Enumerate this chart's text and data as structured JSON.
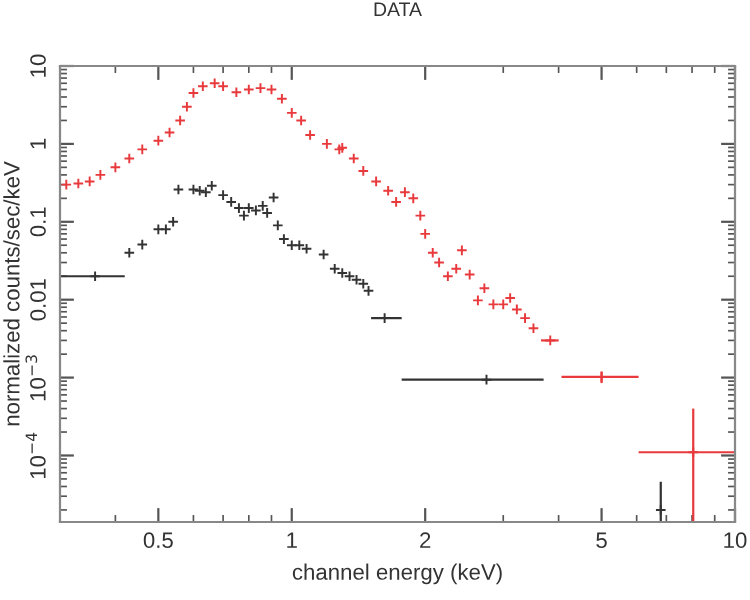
{
  "chart_data": {
    "type": "scatter",
    "title": "DATA",
    "xlabel": "channel energy (keV)",
    "ylabel": "normalized counts/sec/keV",
    "log": "xy",
    "xlim": [
      0.3,
      10
    ],
    "ylim": [
      1.4e-05,
      10
    ],
    "xticks": [
      0.5,
      1,
      2,
      5,
      10
    ],
    "yticks": [
      {
        "value": 0.0001,
        "label": "10$^{−4}$"
      },
      {
        "value": 0.001,
        "label": "10$^{−3}$"
      },
      0.01,
      0.1,
      1,
      10
    ],
    "grid": false,
    "marker": "cross",
    "series": [
      {
        "color": "#e8393c",
        "x": [
          0.31,
          0.33,
          0.35,
          0.37,
          0.4,
          0.43,
          0.46,
          0.5,
          0.53,
          0.56,
          0.58,
          0.6,
          0.63,
          0.67,
          0.7,
          0.75,
          0.8,
          0.85,
          0.9,
          0.95,
          1.0,
          1.05,
          1.1,
          1.2,
          1.28,
          1.3,
          1.38,
          1.45,
          1.55,
          1.65,
          1.72,
          1.8,
          1.88,
          1.95,
          2.0,
          2.08,
          2.15,
          2.25,
          2.35,
          2.42,
          2.52,
          2.63,
          2.72,
          2.85,
          3.0,
          3.11,
          3.22,
          3.36,
          3.51,
          3.83,
          5.0,
          8.05
        ],
        "values": [
          0.3,
          0.31,
          0.33,
          0.4,
          0.5,
          0.65,
          0.85,
          1.1,
          1.4,
          2.0,
          3.0,
          4.5,
          5.5,
          6.0,
          5.5,
          4.6,
          5.0,
          5.2,
          5.0,
          3.8,
          2.5,
          2.0,
          1.3,
          1.0,
          0.85,
          0.89,
          0.65,
          0.45,
          0.33,
          0.25,
          0.18,
          0.24,
          0.2,
          0.12,
          0.07,
          0.04,
          0.03,
          0.02,
          0.025,
          0.043,
          0.021,
          0.0098,
          0.014,
          0.0087,
          0.0087,
          0.0105,
          0.0075,
          0.0058,
          0.0043,
          0.003,
          0.00102,
          0.00011
        ],
        "xerrors": [
          null,
          null,
          null,
          null,
          null,
          null,
          null,
          null,
          null,
          null,
          null,
          null,
          null,
          null,
          null,
          null,
          null,
          null,
          null,
          null,
          null,
          null,
          null,
          null,
          null,
          null,
          null,
          null,
          null,
          null,
          null,
          null,
          null,
          null,
          null,
          null,
          null,
          null,
          null,
          null,
          null,
          null,
          null,
          null,
          null,
          null,
          null,
          null,
          null,
          [
            3.65,
            4.0
          ],
          [
            4.06,
            6.06
          ],
          [
            6.06,
            10
          ]
        ],
        "errors": [
          null,
          null,
          null,
          null,
          null,
          null,
          null,
          null,
          null,
          null,
          null,
          null,
          null,
          null,
          null,
          null,
          null,
          null,
          null,
          null,
          null,
          null,
          null,
          null,
          null,
          null,
          null,
          null,
          null,
          null,
          null,
          null,
          null,
          null,
          null,
          null,
          null,
          null,
          null,
          null,
          null,
          null,
          null,
          null,
          null,
          null,
          null,
          null,
          null,
          null,
          [
            0.00085,
            0.0012
          ],
          [
            1.4e-05,
            0.0004
          ]
        ]
      },
      {
        "color": "#333333",
        "x": [
          0.36,
          0.43,
          0.46,
          0.5,
          0.52,
          0.54,
          0.555,
          0.6,
          0.62,
          0.64,
          0.66,
          0.7,
          0.73,
          0.76,
          0.78,
          0.8,
          0.83,
          0.86,
          0.88,
          0.91,
          0.93,
          0.96,
          1.0,
          1.04,
          1.08,
          1.18,
          1.25,
          1.3,
          1.35,
          1.4,
          1.45,
          1.49,
          1.62,
          2.75,
          6.8
        ],
        "values": [
          0.02,
          0.04,
          0.051,
          0.08,
          0.08,
          0.1,
          0.26,
          0.26,
          0.25,
          0.24,
          0.29,
          0.22,
          0.18,
          0.15,
          0.12,
          0.15,
          0.14,
          0.16,
          0.13,
          0.205,
          0.09,
          0.06,
          0.05,
          0.05,
          0.045,
          0.038,
          0.025,
          0.022,
          0.02,
          0.018,
          0.016,
          0.013,
          0.0058,
          0.00094,
          2e-05
        ],
        "xerrors": [
          [
            0.3,
            0.42
          ],
          null,
          null,
          null,
          null,
          null,
          null,
          null,
          null,
          null,
          null,
          null,
          null,
          null,
          null,
          null,
          null,
          null,
          null,
          null,
          null,
          null,
          null,
          null,
          null,
          null,
          null,
          null,
          null,
          null,
          null,
          null,
          [
            1.51,
            1.77
          ],
          [
            1.77,
            3.7
          ],
          null
        ],
        "errors": [
          null,
          null,
          null,
          null,
          null,
          null,
          null,
          null,
          null,
          null,
          null,
          null,
          null,
          null,
          null,
          null,
          null,
          null,
          null,
          null,
          null,
          null,
          null,
          null,
          null,
          null,
          null,
          null,
          null,
          null,
          null,
          null,
          null,
          null,
          [
            1.4e-05,
            4.6e-05
          ]
        ]
      }
    ]
  }
}
